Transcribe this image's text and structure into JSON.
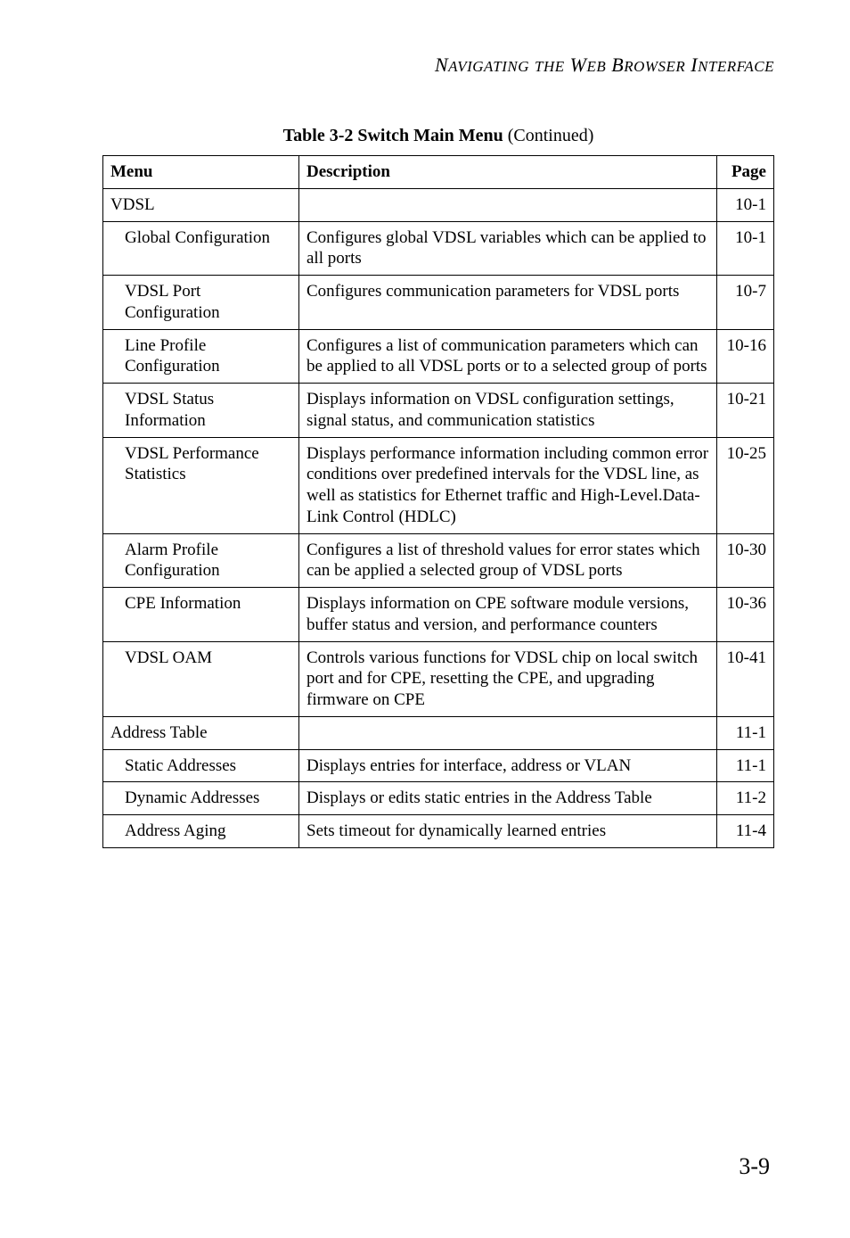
{
  "running_head": {
    "pieces": [
      "N",
      "AVIGATING",
      " ",
      "THE",
      " W",
      "EB",
      " B",
      "ROWSER",
      " I",
      "NTERFACE"
    ]
  },
  "caption": {
    "label": "Table 3-2  Switch Main Menu",
    "suffix": " (Continued)"
  },
  "headers": {
    "menu": "Menu",
    "desc": "Description",
    "page": "Page"
  },
  "rows": [
    {
      "menu": "VDSL",
      "indent": "top",
      "desc": "",
      "page": "10-1"
    },
    {
      "menu": "Global Configuration",
      "indent": "sub",
      "desc": "Configures global VDSL variables which can be applied to all ports",
      "page": "10-1"
    },
    {
      "menu": "VDSL Port Configuration",
      "indent": "sub",
      "desc": "Configures communication parameters for VDSL ports",
      "page": "10-7"
    },
    {
      "menu": "Line Profile Configuration",
      "indent": "sub",
      "desc": "Configures a list of communication parameters which can be applied to all VDSL ports or to a selected group of ports",
      "page": "10-16"
    },
    {
      "menu": "VDSL Status Information",
      "indent": "sub",
      "desc": "Displays information on VDSL configuration settings, signal status, and communication statistics",
      "page": "10-21"
    },
    {
      "menu": "VDSL Performance Statistics",
      "indent": "sub",
      "desc": "Displays performance information including common error conditions over predefined intervals for the VDSL line, as well as statistics for Ethernet traffic and High-Level.Data-Link Control (HDLC)",
      "page": "10-25"
    },
    {
      "menu": "Alarm Profile Configuration",
      "indent": "sub",
      "desc": "Configures a list of threshold values for error states which can be applied a selected group of VDSL ports",
      "page": "10-30"
    },
    {
      "menu": "CPE Information",
      "indent": "sub",
      "desc": "Displays information on CPE software module versions, buffer status and version, and performance counters",
      "page": "10-36"
    },
    {
      "menu": "VDSL OAM",
      "indent": "sub",
      "desc": "Controls various functions for VDSL chip on local switch port and for CPE, resetting the CPE, and upgrading firmware on CPE",
      "page": "10-41"
    },
    {
      "menu": "Address Table",
      "indent": "top",
      "desc": "",
      "page": "11-1"
    },
    {
      "menu": "Static Addresses",
      "indent": "sub",
      "desc": "Displays entries for interface, address or VLAN",
      "page": "11-1"
    },
    {
      "menu": "Dynamic Addresses",
      "indent": "sub",
      "desc": "Displays or edits static entries in the Address Table",
      "page": "11-2"
    },
    {
      "menu": "Address Aging",
      "indent": "sub",
      "desc": "Sets timeout for dynamically learned entries",
      "page": "11-4"
    }
  ],
  "page_number": "3-9",
  "colors": {
    "background": "#ffffff",
    "text": "#000000",
    "border": "#000000"
  }
}
